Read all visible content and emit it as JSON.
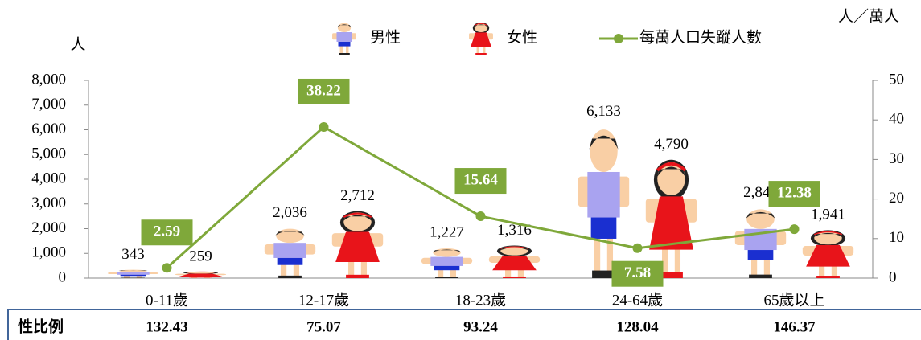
{
  "chart_data": {
    "type": "bar",
    "y_label": "人",
    "y2_label": "人／萬人",
    "categories": [
      "0-11歲",
      "12-17歲",
      "18-23歲",
      "24-64歲",
      "65歲以上"
    ],
    "series": [
      {
        "name": "男性",
        "color": "#a9a3f0",
        "values": [
          343,
          2036,
          1227,
          6133,
          2841
        ],
        "value_labels": [
          "343",
          "2,036",
          "1,227",
          "6,133",
          "2,841"
        ]
      },
      {
        "name": "女性",
        "color": "#e8141a",
        "values": [
          259,
          2712,
          1316,
          4790,
          1941
        ],
        "value_labels": [
          "259",
          "2,712",
          "1,316",
          "4,790",
          "1,941"
        ]
      },
      {
        "name": "每萬人口失蹤人數",
        "type": "line",
        "axis": "y2",
        "color": "#7fa83a",
        "values": [
          2.59,
          38.22,
          15.64,
          7.58,
          12.38
        ]
      }
    ],
    "ylim": [
      0,
      8000
    ],
    "yticks": [
      0,
      {
        "value": 1000,
        "label": "1,000"
      },
      {
        "value": 2000,
        "label": "2,000"
      },
      {
        "value": 3000,
        "label": "3,000"
      },
      {
        "value": 4000,
        "label": "4,000"
      },
      {
        "value": 5000,
        "label": "5,000"
      },
      {
        "value": 6000,
        "label": "6,000"
      },
      {
        "value": 7000,
        "label": "7,000"
      },
      {
        "value": 8000,
        "label": "8,000"
      }
    ],
    "y2lim": [
      0,
      50
    ],
    "y2ticks": [
      0,
      10,
      20,
      30,
      40,
      50
    ],
    "legend": "top"
  },
  "sex_ratio": {
    "label": "性比例",
    "values": [
      132.43,
      75.07,
      93.24,
      128.04,
      146.37
    ]
  }
}
